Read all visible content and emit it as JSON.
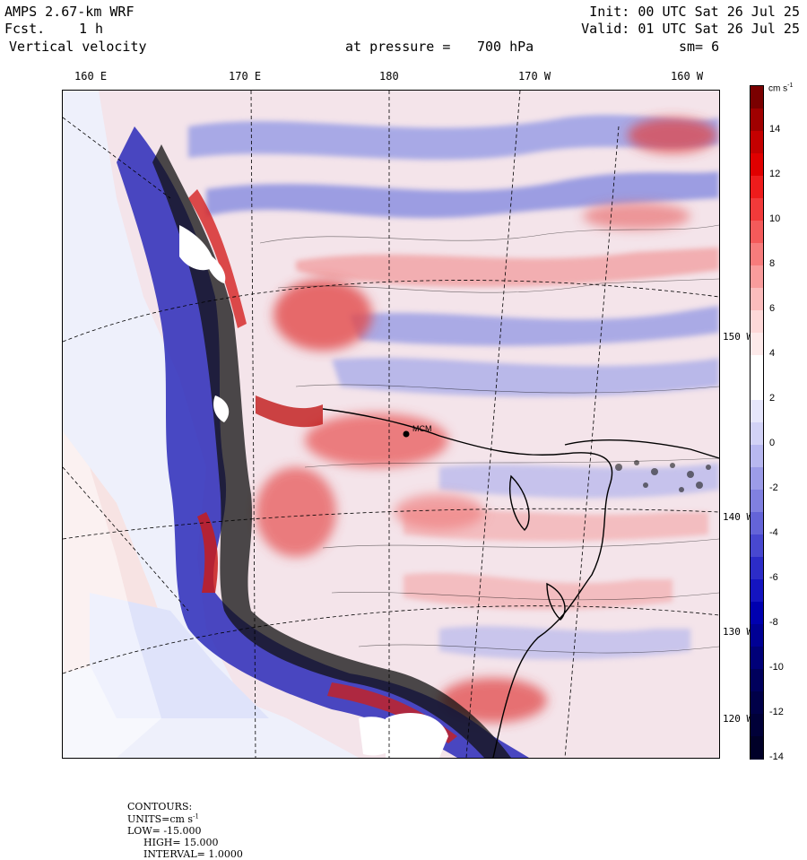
{
  "header": {
    "model": "AMPS 2.67-km WRF",
    "forecast_label": "Fcst.",
    "forecast_value": "1 h",
    "field": "Vertical velocity",
    "level_prefix": "at pressure =",
    "level_value": "700 hPa",
    "init": "Init: 00 UTC Sat 26 Jul 25",
    "valid": "Valid: 01 UTC Sat 26 Jul 25",
    "smoothing": "sm= 6"
  },
  "longitude_labels": [
    "160 E",
    "170 E",
    "180",
    "170 W",
    "160 W"
  ],
  "latitude_labels": [
    "150 W",
    "140 W",
    "130 W",
    "120 W"
  ],
  "colorbar": {
    "units": "cm s",
    "units_exp": "-1",
    "ticks": [
      "14",
      "12",
      "10",
      "8",
      "6",
      "4",
      "2",
      "0",
      "-2",
      "-4",
      "-6",
      "-8",
      "-10",
      "-12",
      "-14"
    ],
    "colors": [
      "#7a0000",
      "#a00000",
      "#c40000",
      "#e00000",
      "#ee1c1c",
      "#f23a3a",
      "#f45a5a",
      "#f77c7c",
      "#f99c9c",
      "#fbbcbc",
      "#fdd8d8",
      "#fdeaea",
      "#ffffff",
      "#ffffff",
      "#e6e6fb",
      "#d2d2f6",
      "#b8b8f0",
      "#9c9ce8",
      "#8080e0",
      "#6464d8",
      "#4848d0",
      "#2c2cc8",
      "#1414c0",
      "#0000b0",
      "#000094",
      "#000078",
      "#00005c",
      "#000048",
      "#000038",
      "#000028"
    ]
  },
  "map_labels": {
    "station": "MCM"
  },
  "footer": {
    "contours": "CONTOURS:",
    "units": "UNITS=cm s",
    "units_exp": "-1",
    "low": "LOW= -15.000",
    "high": "HIGH= 15.000",
    "interval": "INTERVAL= 1.0000"
  },
  "palette": {
    "positive": "#e04a4a",
    "negative": "#3a3ad0",
    "land": "#ffffff",
    "background": "#f3e6ea"
  }
}
